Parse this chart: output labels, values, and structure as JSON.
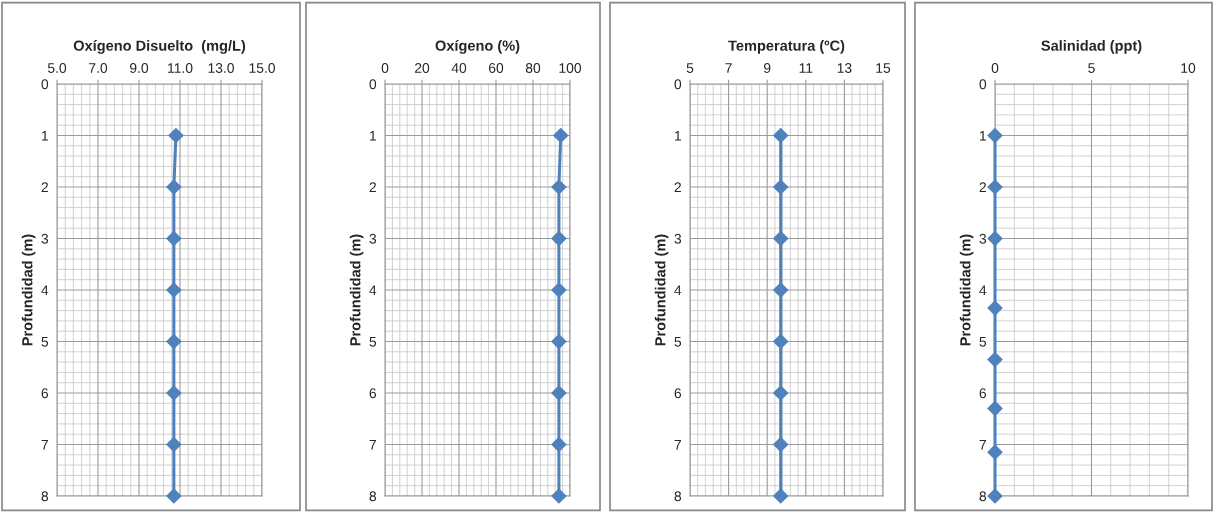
{
  "chart_data": [
    {
      "type": "line",
      "title": "Oxígeno Disuelto  (mg/L)",
      "ylabel": "Profundidad (m)",
      "xlim": [
        5,
        15
      ],
      "xticks": [
        {
          "value": 5,
          "label": "5.0"
        },
        {
          "value": 7,
          "label": "7.0"
        },
        {
          "value": 9,
          "label": "9.0"
        },
        {
          "value": 11,
          "label": "11.0"
        },
        {
          "value": 13,
          "label": "13.0"
        },
        {
          "value": 15,
          "label": "15.0"
        }
      ],
      "ylim": [
        8,
        0
      ],
      "yticks": [
        0,
        1,
        2,
        3,
        4,
        5,
        6,
        7,
        8
      ],
      "grid": true,
      "marker": "diamond",
      "series": [
        {
          "color": "#4f81bd",
          "x": [
            10.8,
            10.7,
            10.7,
            10.7,
            10.7,
            10.7,
            10.7,
            10.7
          ],
          "values": [
            1,
            2,
            3,
            4,
            5,
            6,
            7,
            8
          ]
        }
      ]
    },
    {
      "type": "line",
      "title": "Oxígeno (%)",
      "ylabel": "Profundidad (m)",
      "xlim": [
        0,
        100
      ],
      "xticks": [
        0,
        20,
        40,
        60,
        80,
        100
      ],
      "ylim": [
        8,
        0
      ],
      "yticks": [
        0,
        1,
        2,
        3,
        4,
        5,
        6,
        7,
        8
      ],
      "grid": true,
      "marker": "diamond",
      "series": [
        {
          "color": "#4f81bd",
          "x": [
            95,
            94,
            94,
            94,
            94,
            94,
            94,
            94
          ],
          "values": [
            1,
            2,
            3,
            4,
            5,
            6,
            7,
            8
          ]
        }
      ]
    },
    {
      "type": "line",
      "title": "Temperatura (ºC)",
      "ylabel": "Profundidad (m)",
      "xlim": [
        5,
        15
      ],
      "xticks": [
        5,
        7,
        9,
        11,
        13,
        15
      ],
      "ylim": [
        8,
        0
      ],
      "yticks": [
        0,
        1,
        2,
        3,
        4,
        5,
        6,
        7,
        8
      ],
      "grid": true,
      "marker": "diamond",
      "series": [
        {
          "color": "#4f81bd",
          "x": [
            9.7,
            9.7,
            9.7,
            9.7,
            9.7,
            9.7,
            9.7,
            9.7
          ],
          "values": [
            1,
            2,
            3,
            4,
            5,
            6,
            7,
            8
          ]
        }
      ]
    },
    {
      "type": "line",
      "title": "Salinidad (ppt)",
      "ylabel": "Profundidad (m)",
      "xlim": [
        0,
        10
      ],
      "xticks": [
        0,
        5,
        10
      ],
      "ylim": [
        8,
        0
      ],
      "yticks": [
        0,
        1,
        2,
        3,
        4,
        5,
        6,
        7,
        8
      ],
      "grid": true,
      "marker": "diamond",
      "series": [
        {
          "color": "#4f81bd",
          "x": [
            0,
            0,
            0,
            0,
            0,
            0,
            0,
            0
          ],
          "values": [
            1,
            2,
            3,
            4.35,
            5.35,
            6.3,
            7.15,
            8
          ]
        }
      ]
    }
  ]
}
